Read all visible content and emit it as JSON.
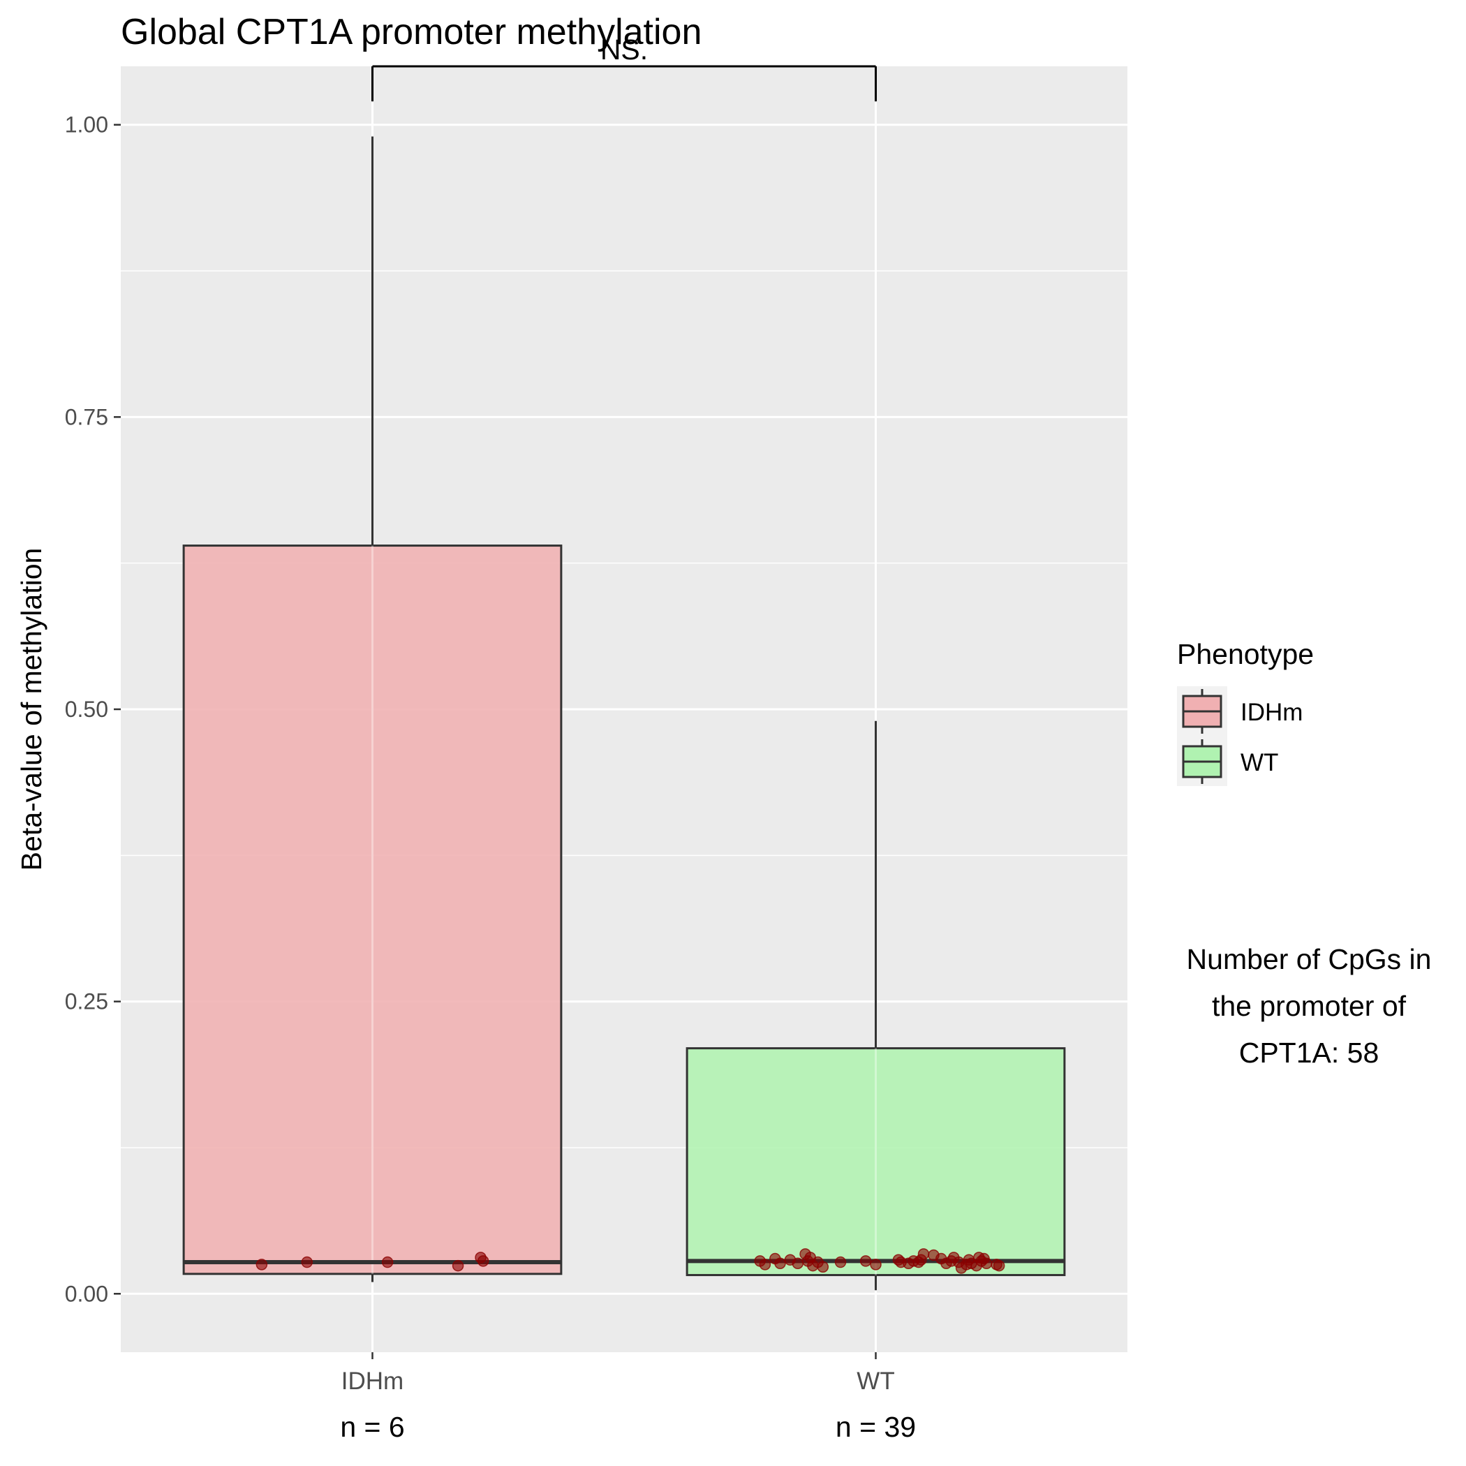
{
  "chart_data": {
    "type": "boxplot",
    "title": "Global CPT1A promoter methylation",
    "xlabel": "",
    "ylabel": "Beta-value of methylation",
    "ylim": [
      -0.05,
      1.05
    ],
    "yticks": [
      0.0,
      0.25,
      0.5,
      0.75,
      1.0
    ],
    "ytick_labels": [
      "0.00",
      "0.25",
      "0.50",
      "0.75",
      "1.00"
    ],
    "grid": true,
    "categories": [
      "IDHm",
      "WT"
    ],
    "counts": [
      "n = 6",
      "n = 39"
    ],
    "significance": "NS.",
    "boxes": [
      {
        "category": "IDHm",
        "whisker_low": 0.01,
        "q1": 0.017,
        "median": 0.027,
        "q3": 0.64,
        "whisker_high": 0.99,
        "fill": "#f0b0b2",
        "points": [
          {
            "x": -0.22,
            "y": 0.025
          },
          {
            "x": -0.13,
            "y": 0.027
          },
          {
            "x": 0.03,
            "y": 0.027
          },
          {
            "x": 0.17,
            "y": 0.024
          },
          {
            "x": 0.215,
            "y": 0.031
          },
          {
            "x": 0.22,
            "y": 0.028
          }
        ]
      },
      {
        "category": "WT",
        "whisker_low": 0.003,
        "q1": 0.016,
        "median": 0.028,
        "q3": 0.21,
        "whisker_high": 0.49,
        "fill": "#b0f2b1",
        "points": [
          {
            "x": -0.23,
            "y": 0.028
          },
          {
            "x": -0.22,
            "y": 0.025
          },
          {
            "x": -0.2,
            "y": 0.03
          },
          {
            "x": -0.19,
            "y": 0.026
          },
          {
            "x": -0.17,
            "y": 0.029
          },
          {
            "x": -0.155,
            "y": 0.026
          },
          {
            "x": -0.14,
            "y": 0.034
          },
          {
            "x": -0.135,
            "y": 0.028
          },
          {
            "x": -0.13,
            "y": 0.031
          },
          {
            "x": -0.125,
            "y": 0.024
          },
          {
            "x": -0.115,
            "y": 0.027
          },
          {
            "x": -0.105,
            "y": 0.023
          },
          {
            "x": -0.07,
            "y": 0.027
          },
          {
            "x": -0.02,
            "y": 0.028
          },
          {
            "x": 0.0,
            "y": 0.025
          },
          {
            "x": 0.045,
            "y": 0.029
          },
          {
            "x": 0.05,
            "y": 0.027
          },
          {
            "x": 0.065,
            "y": 0.026
          },
          {
            "x": 0.075,
            "y": 0.028
          },
          {
            "x": 0.085,
            "y": 0.027
          },
          {
            "x": 0.09,
            "y": 0.029
          },
          {
            "x": 0.095,
            "y": 0.034
          },
          {
            "x": 0.115,
            "y": 0.033
          },
          {
            "x": 0.13,
            "y": 0.03
          },
          {
            "x": 0.14,
            "y": 0.026
          },
          {
            "x": 0.15,
            "y": 0.028
          },
          {
            "x": 0.155,
            "y": 0.031
          },
          {
            "x": 0.165,
            "y": 0.027
          },
          {
            "x": 0.17,
            "y": 0.022
          },
          {
            "x": 0.18,
            "y": 0.025
          },
          {
            "x": 0.185,
            "y": 0.029
          },
          {
            "x": 0.19,
            "y": 0.026
          },
          {
            "x": 0.2,
            "y": 0.024
          },
          {
            "x": 0.205,
            "y": 0.031
          },
          {
            "x": 0.21,
            "y": 0.028
          },
          {
            "x": 0.215,
            "y": 0.03
          },
          {
            "x": 0.22,
            "y": 0.026
          },
          {
            "x": 0.24,
            "y": 0.025
          },
          {
            "x": 0.245,
            "y": 0.024
          }
        ]
      }
    ],
    "point_color": "#8b0000",
    "panel_background": "#ebebeb",
    "legend": {
      "title": "Phenotype",
      "placement": "right",
      "entries": [
        {
          "label": "IDHm",
          "fill": "#f0b0b2"
        },
        {
          "label": "WT",
          "fill": "#b0f2b1"
        }
      ]
    },
    "annotation_lines": [
      "Number of CpGs in",
      "the promoter of",
      "CPT1A: 58"
    ]
  }
}
